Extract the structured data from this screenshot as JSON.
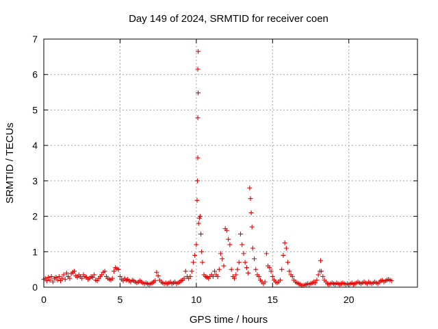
{
  "chart_data": {
    "type": "scatter",
    "title": "Day 149 of 2024, SRMTID for receiver coen",
    "xlabel": "GPS time / hours",
    "ylabel": "SRMTID / TECUs",
    "xlim": [
      0,
      24.5
    ],
    "ylim": [
      0,
      7
    ],
    "xticks": [
      0,
      5,
      10,
      15,
      20
    ],
    "yticks": [
      0,
      1,
      2,
      3,
      4,
      5,
      6,
      7
    ],
    "grid": true,
    "marker": "+",
    "color": "#e00000",
    "series": [
      {
        "name": "SRMTID",
        "points": [
          [
            0.0,
            0.22
          ],
          [
            0.1,
            0.25
          ],
          [
            0.2,
            0.18
          ],
          [
            0.3,
            0.28
          ],
          [
            0.4,
            0.2
          ],
          [
            0.5,
            0.3
          ],
          [
            0.6,
            0.15
          ],
          [
            0.7,
            0.25
          ],
          [
            0.8,
            0.28
          ],
          [
            0.9,
            0.2
          ],
          [
            1.0,
            0.3
          ],
          [
            1.1,
            0.18
          ],
          [
            1.2,
            0.25
          ],
          [
            1.3,
            0.35
          ],
          [
            1.4,
            0.22
          ],
          [
            1.5,
            0.4
          ],
          [
            1.6,
            0.3
          ],
          [
            1.7,
            0.25
          ],
          [
            1.8,
            0.38
          ],
          [
            1.9,
            0.42
          ],
          [
            2.0,
            0.45
          ],
          [
            2.1,
            0.32
          ],
          [
            2.2,
            0.28
          ],
          [
            2.3,
            0.35
          ],
          [
            2.4,
            0.3
          ],
          [
            2.5,
            0.25
          ],
          [
            2.6,
            0.35
          ],
          [
            2.7,
            0.3
          ],
          [
            2.8,
            0.28
          ],
          [
            2.9,
            0.22
          ],
          [
            3.0,
            0.25
          ],
          [
            3.1,
            0.3
          ],
          [
            3.2,
            0.28
          ],
          [
            3.3,
            0.35
          ],
          [
            3.4,
            0.2
          ],
          [
            3.5,
            0.18
          ],
          [
            3.6,
            0.25
          ],
          [
            3.7,
            0.3
          ],
          [
            3.8,
            0.35
          ],
          [
            3.9,
            0.42
          ],
          [
            4.0,
            0.45
          ],
          [
            4.1,
            0.3
          ],
          [
            4.2,
            0.25
          ],
          [
            4.3,
            0.22
          ],
          [
            4.4,
            0.2
          ],
          [
            4.5,
            0.25
          ],
          [
            4.6,
            0.45
          ],
          [
            4.7,
            0.55
          ],
          [
            4.8,
            0.52
          ],
          [
            4.9,
            0.5
          ],
          [
            5.0,
            0.3
          ],
          [
            5.1,
            0.22
          ],
          [
            5.2,
            0.18
          ],
          [
            5.3,
            0.25
          ],
          [
            5.4,
            0.2
          ],
          [
            5.5,
            0.22
          ],
          [
            5.6,
            0.18
          ],
          [
            5.7,
            0.15
          ],
          [
            5.8,
            0.2
          ],
          [
            5.9,
            0.18
          ],
          [
            6.0,
            0.15
          ],
          [
            6.1,
            0.12
          ],
          [
            6.2,
            0.15
          ],
          [
            6.3,
            0.18
          ],
          [
            6.4,
            0.15
          ],
          [
            6.5,
            0.12
          ],
          [
            6.6,
            0.1
          ],
          [
            6.7,
            0.12
          ],
          [
            6.8,
            0.1
          ],
          [
            6.9,
            0.08
          ],
          [
            7.0,
            0.1
          ],
          [
            7.1,
            0.12
          ],
          [
            7.2,
            0.15
          ],
          [
            7.3,
            0.18
          ],
          [
            7.4,
            0.42
          ],
          [
            7.5,
            0.32
          ],
          [
            7.6,
            0.2
          ],
          [
            7.7,
            0.15
          ],
          [
            7.8,
            0.12
          ],
          [
            7.9,
            0.1
          ],
          [
            8.0,
            0.12
          ],
          [
            8.1,
            0.1
          ],
          [
            8.2,
            0.12
          ],
          [
            8.3,
            0.15
          ],
          [
            8.4,
            0.1
          ],
          [
            8.5,
            0.12
          ],
          [
            8.6,
            0.15
          ],
          [
            8.7,
            0.1
          ],
          [
            8.8,
            0.12
          ],
          [
            8.9,
            0.15
          ],
          [
            9.0,
            0.18
          ],
          [
            9.1,
            0.2
          ],
          [
            9.2,
            0.25
          ],
          [
            9.3,
            0.45
          ],
          [
            9.4,
            0.3
          ],
          [
            9.5,
            0.25
          ],
          [
            9.6,
            0.3
          ],
          [
            9.7,
            0.45
          ],
          [
            9.8,
            0.7
          ],
          [
            9.9,
            0.9
          ],
          [
            10.0,
            1.2
          ],
          [
            10.05,
            2.45
          ],
          [
            10.07,
            3.0
          ],
          [
            10.1,
            3.65
          ],
          [
            10.1,
            4.78
          ],
          [
            10.12,
            5.48
          ],
          [
            10.1,
            6.15
          ],
          [
            10.12,
            6.65
          ],
          [
            10.15,
            1.8
          ],
          [
            10.2,
            1.95
          ],
          [
            10.25,
            2.0
          ],
          [
            10.3,
            1.5
          ],
          [
            10.35,
            1.0
          ],
          [
            10.4,
            0.7
          ],
          [
            10.5,
            0.35
          ],
          [
            10.6,
            0.3
          ],
          [
            10.7,
            0.28
          ],
          [
            10.8,
            0.25
          ],
          [
            10.9,
            0.3
          ],
          [
            11.0,
            0.35
          ],
          [
            11.1,
            0.3
          ],
          [
            11.2,
            0.45
          ],
          [
            11.3,
            0.35
          ],
          [
            11.4,
            0.3
          ],
          [
            11.5,
            0.5
          ],
          [
            11.6,
            0.95
          ],
          [
            11.7,
            0.8
          ],
          [
            11.8,
            0.6
          ],
          [
            11.9,
            1.65
          ],
          [
            12.0,
            1.6
          ],
          [
            12.1,
            1.35
          ],
          [
            12.2,
            1.2
          ],
          [
            12.3,
            0.5
          ],
          [
            12.4,
            0.3
          ],
          [
            12.5,
            0.25
          ],
          [
            12.6,
            0.35
          ],
          [
            12.7,
            0.5
          ],
          [
            12.8,
            0.7
          ],
          [
            12.9,
            1.5
          ],
          [
            13.0,
            1.2
          ],
          [
            13.1,
            0.95
          ],
          [
            13.2,
            0.7
          ],
          [
            13.3,
            0.55
          ],
          [
            13.4,
            0.4
          ],
          [
            13.5,
            2.8
          ],
          [
            13.55,
            2.5
          ],
          [
            13.6,
            2.1
          ],
          [
            13.65,
            1.7
          ],
          [
            13.7,
            1.1
          ],
          [
            13.8,
            0.8
          ],
          [
            13.9,
            0.5
          ],
          [
            14.0,
            0.35
          ],
          [
            14.1,
            0.3
          ],
          [
            14.2,
            0.2
          ],
          [
            14.3,
            0.15
          ],
          [
            14.4,
            0.1
          ],
          [
            14.5,
            0.15
          ],
          [
            14.6,
            0.95
          ],
          [
            14.7,
            0.6
          ],
          [
            14.8,
            0.55
          ],
          [
            14.9,
            0.45
          ],
          [
            15.0,
            0.3
          ],
          [
            15.1,
            0.2
          ],
          [
            15.2,
            0.15
          ],
          [
            15.3,
            0.12
          ],
          [
            15.4,
            0.15
          ],
          [
            15.5,
            0.2
          ],
          [
            15.6,
            0.5
          ],
          [
            15.7,
            0.9
          ],
          [
            15.8,
            1.25
          ],
          [
            15.9,
            1.1
          ],
          [
            16.0,
            0.7
          ],
          [
            16.1,
            0.45
          ],
          [
            16.2,
            0.35
          ],
          [
            16.3,
            0.3
          ],
          [
            16.4,
            0.2
          ],
          [
            16.5,
            0.15
          ],
          [
            16.6,
            0.12
          ],
          [
            16.7,
            0.1
          ],
          [
            16.8,
            0.08
          ],
          [
            16.9,
            0.05
          ],
          [
            17.0,
            0.05
          ],
          [
            17.1,
            0.06
          ],
          [
            17.2,
            0.08
          ],
          [
            17.3,
            0.1
          ],
          [
            17.4,
            0.08
          ],
          [
            17.5,
            0.1
          ],
          [
            17.6,
            0.12
          ],
          [
            17.7,
            0.15
          ],
          [
            17.8,
            0.12
          ],
          [
            17.9,
            0.2
          ],
          [
            18.0,
            0.35
          ],
          [
            18.1,
            0.45
          ],
          [
            18.15,
            0.75
          ],
          [
            18.2,
            0.45
          ],
          [
            18.3,
            0.3
          ],
          [
            18.4,
            0.2
          ],
          [
            18.5,
            0.15
          ],
          [
            18.6,
            0.1
          ],
          [
            18.7,
            0.08
          ],
          [
            18.8,
            0.1
          ],
          [
            18.9,
            0.12
          ],
          [
            19.0,
            0.1
          ],
          [
            19.1,
            0.08
          ],
          [
            19.2,
            0.12
          ],
          [
            19.3,
            0.1
          ],
          [
            19.4,
            0.08
          ],
          [
            19.5,
            0.1
          ],
          [
            19.6,
            0.12
          ],
          [
            19.7,
            0.1
          ],
          [
            19.8,
            0.08
          ],
          [
            19.9,
            0.1
          ],
          [
            20.0,
            0.08
          ],
          [
            20.1,
            0.1
          ],
          [
            20.2,
            0.12
          ],
          [
            20.3,
            0.08
          ],
          [
            20.4,
            0.1
          ],
          [
            20.5,
            0.12
          ],
          [
            20.6,
            0.15
          ],
          [
            20.7,
            0.12
          ],
          [
            20.8,
            0.1
          ],
          [
            20.9,
            0.12
          ],
          [
            21.0,
            0.15
          ],
          [
            21.1,
            0.12
          ],
          [
            21.2,
            0.1
          ],
          [
            21.3,
            0.15
          ],
          [
            21.4,
            0.12
          ],
          [
            21.5,
            0.1
          ],
          [
            21.6,
            0.12
          ],
          [
            21.7,
            0.15
          ],
          [
            21.8,
            0.12
          ],
          [
            21.9,
            0.1
          ],
          [
            22.0,
            0.15
          ],
          [
            22.1,
            0.18
          ],
          [
            22.2,
            0.2
          ],
          [
            22.3,
            0.15
          ],
          [
            22.4,
            0.18
          ],
          [
            22.5,
            0.2
          ],
          [
            22.6,
            0.22
          ],
          [
            22.7,
            0.2
          ],
          [
            22.8,
            0.18
          ]
        ]
      }
    ]
  }
}
